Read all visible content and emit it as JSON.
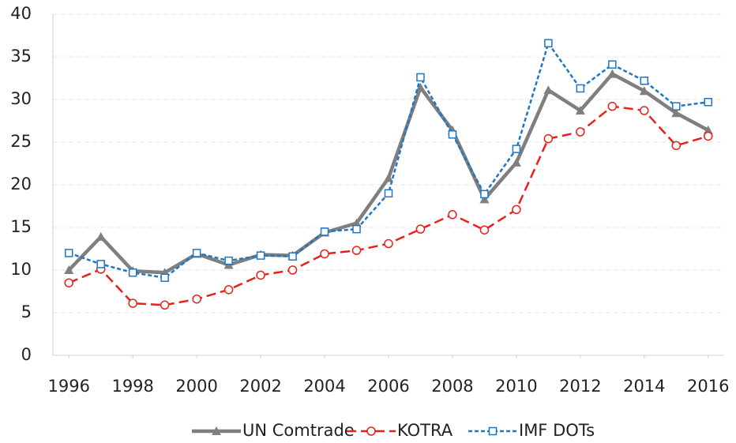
{
  "chart_data": {
    "type": "line",
    "x": [
      1996,
      1997,
      1998,
      1999,
      2000,
      2001,
      2002,
      2003,
      2004,
      2005,
      2006,
      2007,
      2008,
      2009,
      2010,
      2011,
      2012,
      2013,
      2014,
      2015,
      2016
    ],
    "xlim": [
      1995.5,
      2016.5
    ],
    "xticks": [
      1996,
      1998,
      2000,
      2002,
      2004,
      2006,
      2008,
      2010,
      2012,
      2014,
      2016
    ],
    "ylim": [
      0,
      40
    ],
    "yticks": [
      0,
      5,
      10,
      15,
      20,
      25,
      30,
      35,
      40
    ],
    "grid": true,
    "legend": "bottom",
    "series": [
      {
        "name": "UN Comtrade",
        "color": "#7f7f7f",
        "marker": "triangle",
        "dash": "solid",
        "values": [
          10.0,
          13.9,
          9.9,
          9.7,
          11.9,
          10.6,
          11.8,
          11.7,
          14.4,
          15.5,
          20.8,
          31.4,
          26.4,
          18.3,
          22.6,
          31.1,
          28.7,
          33.0,
          31.0,
          28.4,
          26.4
        ]
      },
      {
        "name": "KOTRA",
        "color": "#e8201c",
        "marker": "circle",
        "dash": "dashed",
        "values": [
          8.5,
          10.1,
          6.1,
          5.9,
          6.6,
          7.7,
          9.4,
          10.0,
          11.9,
          12.3,
          13.1,
          14.8,
          16.5,
          14.7,
          17.1,
          25.4,
          26.2,
          29.2,
          28.7,
          24.6,
          25.7
        ]
      },
      {
        "name": "IMF DOTs",
        "color": "#1f77c4",
        "marker": "square",
        "dash": "dotted",
        "values": [
          12.0,
          10.7,
          9.7,
          9.1,
          12.0,
          11.1,
          11.7,
          11.6,
          14.5,
          14.8,
          19.0,
          32.6,
          25.9,
          18.9,
          24.2,
          36.6,
          31.3,
          34.1,
          32.2,
          29.2,
          29.7
        ]
      }
    ]
  }
}
